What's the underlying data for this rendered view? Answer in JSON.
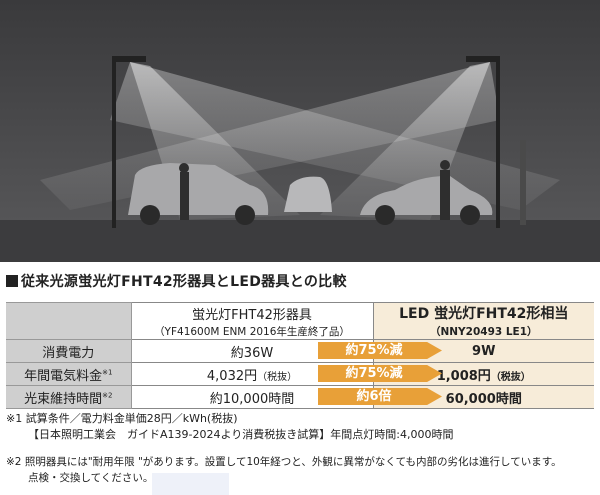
{
  "title": "従来光源蛍光灯FHT42形器具とLED器具との比較",
  "table": {
    "header": {
      "fluorescent": "蛍光灯FHT42形器具",
      "fluorescent_model": "（YF41600M ENM 2016年生産終了品）",
      "led": "LED 蛍光灯FHT42形相当",
      "led_model": "（NNY20493 LE1）"
    },
    "rows": [
      {
        "label": "消費電力",
        "note": "",
        "old": "約36W",
        "old_unit": "",
        "compare": "約75%減",
        "new": "9W",
        "new_unit": ""
      },
      {
        "label": "年間電気料金",
        "note": "※1",
        "old": "4,032円",
        "old_unit": "（税抜）",
        "compare": "約75%減",
        "new": "1,008円",
        "new_unit": "（税抜）"
      },
      {
        "label": "光束維持時間",
        "note": "※2",
        "old": "約10,000時間",
        "old_unit": "",
        "compare": "約6倍",
        "new": "60,000時間",
        "new_unit": ""
      }
    ]
  },
  "notes": {
    "n1_line1": "※1 試算条件／電力料金単価28円／kWh(税抜)",
    "n1_line2": "【日本照明工業会　ガイドA139-2024より消費税抜き試算】年間点灯時間:4,000時間",
    "n2_line1": "※2 照明器具には\"耐用年限 \"があります。設置して10年経つと、外観に異常がなくても内部の劣化は進行しています。",
    "n2_line2": "点検・交換してください。"
  },
  "colors": {
    "arrow": "#e8a038",
    "led_column": "#f7ecd9",
    "label_column": "#cfcfcf"
  }
}
